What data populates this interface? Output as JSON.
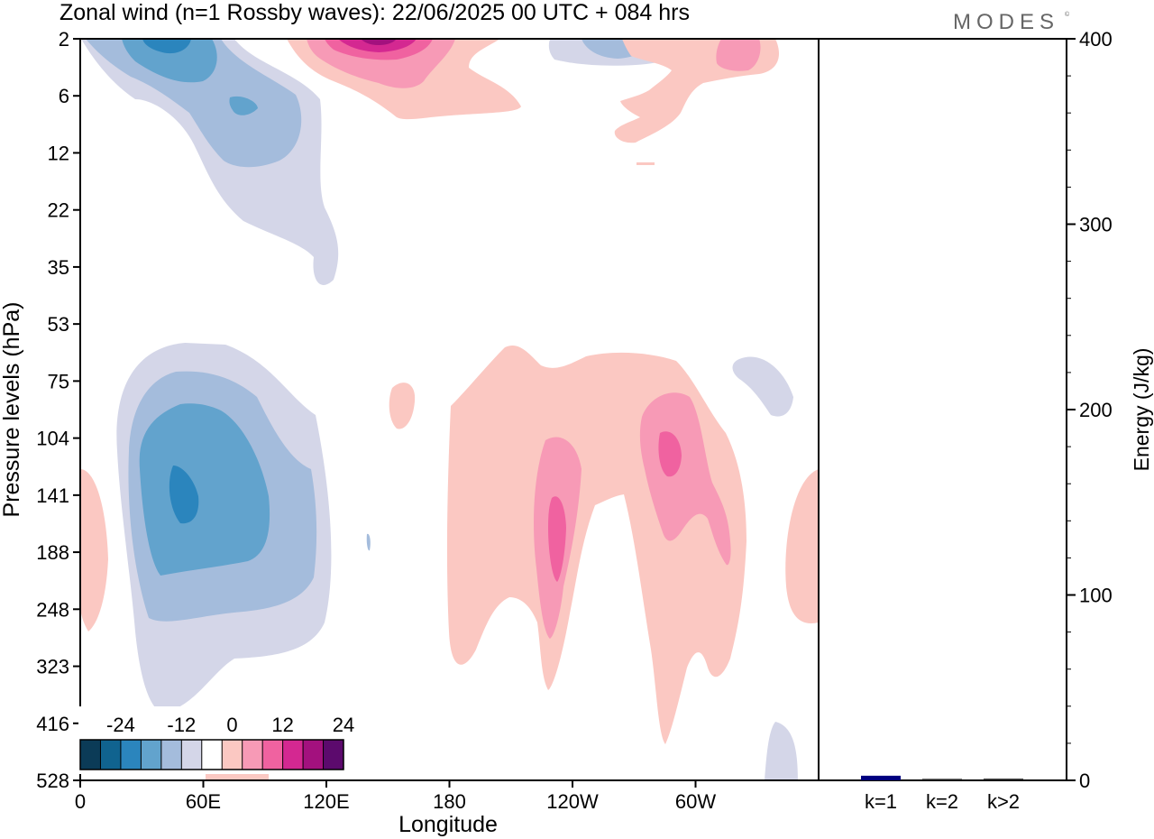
{
  "chart_data": [
    {
      "type": "heatmap",
      "title": "Zonal wind (n=1 Rossby waves):  22/06/2025  00 UTC  + 084 hrs",
      "xlabel": "Longitude",
      "ylabel": "Pressure levels (hPa)",
      "x_ticks": [
        "0",
        "60E",
        "120E",
        "180",
        "120W",
        "60W"
      ],
      "x_tick_degrees": [
        0,
        60,
        120,
        180,
        240,
        300
      ],
      "xlim": [
        0,
        360
      ],
      "y_ticks": [
        "2",
        "6",
        "12",
        "22",
        "35",
        "53",
        "75",
        "104",
        "141",
        "188",
        "248",
        "323",
        "416",
        "528"
      ],
      "y_scale": "pressure (tick labels equally spaced, top = 2 hPa)",
      "colorbar": {
        "tick_labels": [
          "-24",
          "-12",
          "0",
          "12",
          "24"
        ],
        "tick_values": [
          -24,
          -12,
          0,
          12,
          24
        ],
        "levels": [
          -28,
          -24,
          -20,
          -16,
          -12,
          -8,
          -4,
          4,
          8,
          12,
          16,
          20,
          24,
          28
        ],
        "colors": [
          "#0b3b57",
          "#10638f",
          "#2b85bd",
          "#62a3cd",
          "#a4bcdc",
          "#d4d6e8",
          "#ffffff",
          "#fbc8c2",
          "#f79ab6",
          "#f062a0",
          "#d42891",
          "#a3117e",
          "#5c0a6d"
        ]
      },
      "regions": [
        {
          "sign": "negative",
          "levels": [
            -4,
            -8,
            -12,
            -16
          ],
          "center_lon": 45,
          "center_p": "141"
        },
        {
          "sign": "negative",
          "levels": [
            -4,
            -8,
            -12
          ],
          "center_lon": 40,
          "center_p": "4"
        },
        {
          "sign": "negative",
          "levels": [
            -4
          ],
          "center_lon": 320,
          "center_p": "90"
        },
        {
          "sign": "negative",
          "levels": [
            -4
          ],
          "center_lon": 342,
          "center_p": "470"
        },
        {
          "sign": "positive",
          "levels": [
            4,
            8,
            12
          ],
          "center_lon": 235,
          "center_p": "180"
        },
        {
          "sign": "positive",
          "levels": [
            4,
            8,
            12
          ],
          "center_lon": 288,
          "center_p": "110"
        },
        {
          "sign": "positive",
          "levels": [
            4,
            8,
            12,
            16,
            20
          ],
          "center_lon": 145,
          "center_p": "2"
        },
        {
          "sign": "positive",
          "levels": [
            4,
            8
          ],
          "center_lon": 310,
          "center_p": "4"
        },
        {
          "sign": "positive",
          "levels": [
            4
          ],
          "center_lon": 155,
          "center_p": "90"
        },
        {
          "sign": "positive",
          "levels": [
            4
          ],
          "center_lon": 355,
          "center_p": "200"
        },
        {
          "sign": "positive",
          "levels": [
            4
          ],
          "center_lon": 5,
          "center_p": "210"
        }
      ]
    },
    {
      "type": "bar",
      "ylabel": "Energy (J/kg)",
      "ylim": [
        0,
        400
      ],
      "y_ticks": [
        "0",
        "100",
        "200",
        "300",
        "400"
      ],
      "categories": [
        "k=1",
        "k=2",
        "k>2"
      ],
      "values": [
        2.5,
        0.8,
        0.9
      ],
      "colors": [
        "#00007f",
        "#222222",
        "#222222"
      ]
    }
  ],
  "logo": "MODES"
}
